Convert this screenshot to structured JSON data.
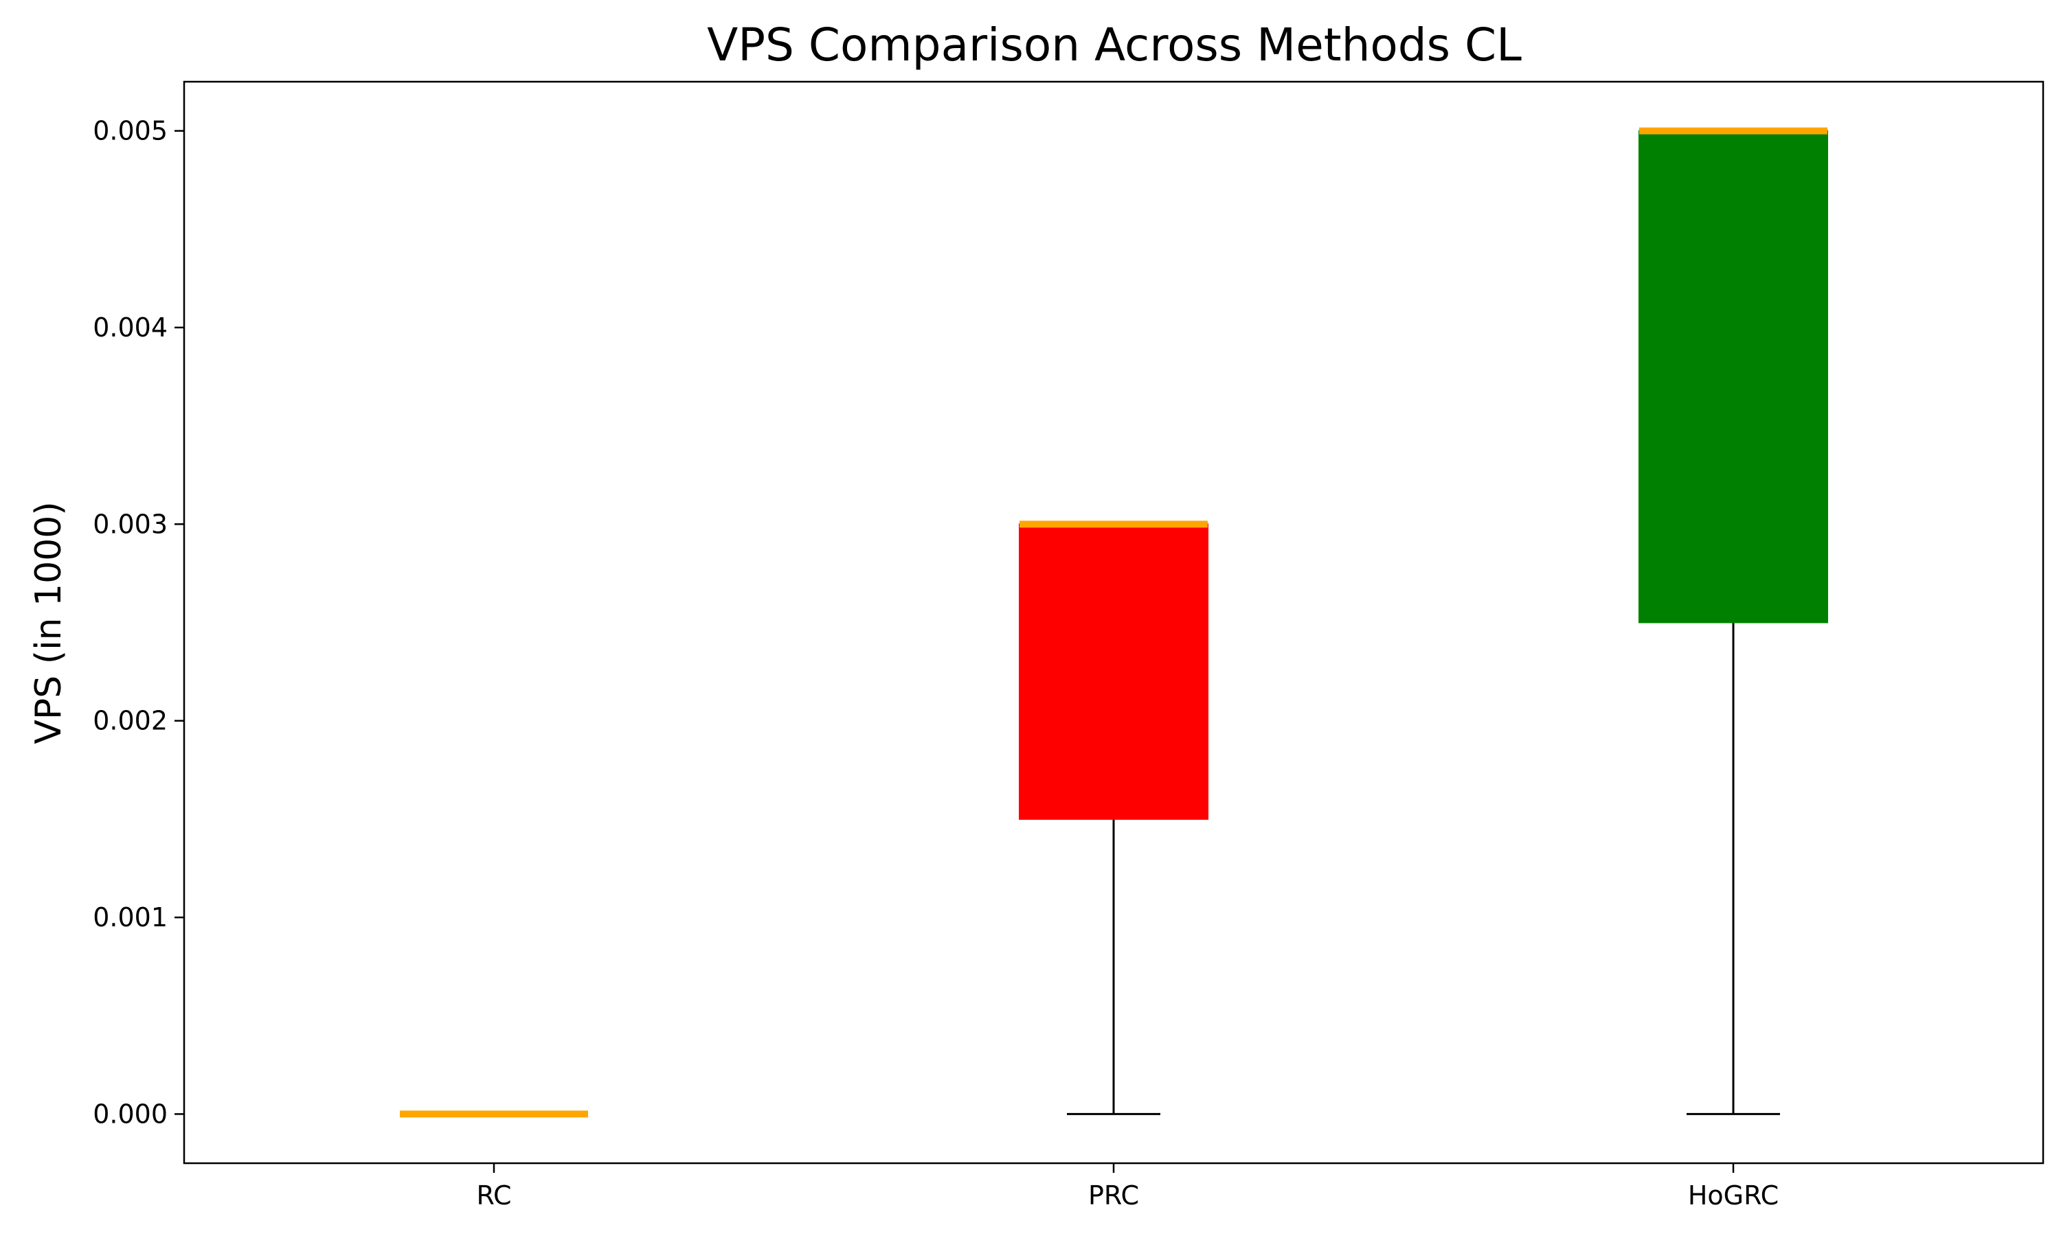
{
  "chart_data": {
    "type": "box",
    "title": "VPS Comparison Across Methods CL",
    "xlabel": "",
    "ylabel": "VPS (in 1000)",
    "ylim": [
      -0.00025,
      0.00525
    ],
    "yticks": [
      0.0,
      0.001,
      0.002,
      0.003,
      0.004,
      0.005
    ],
    "ytick_labels": [
      "0.000",
      "0.001",
      "0.002",
      "0.003",
      "0.004",
      "0.005"
    ],
    "grid": false,
    "categories": [
      "RC",
      "PRC",
      "HoGRC"
    ],
    "boxes": [
      {
        "category": "RC",
        "whisker_low": 0.0,
        "q1": 0.0,
        "median": 0.0,
        "q3": 0.0,
        "whisker_high": 0.0,
        "color": "#ffa500"
      },
      {
        "category": "PRC",
        "whisker_low": 0.0,
        "q1": 0.0015,
        "median": 0.003,
        "q3": 0.003,
        "whisker_high": 0.003,
        "color": "#ff0000"
      },
      {
        "category": "HoGRC",
        "whisker_low": 0.0,
        "q1": 0.0025,
        "median": 0.005,
        "q3": 0.005,
        "whisker_high": 0.005,
        "color": "#008000"
      }
    ],
    "median_color": "#ffa500",
    "whisker_color": "#000000"
  }
}
